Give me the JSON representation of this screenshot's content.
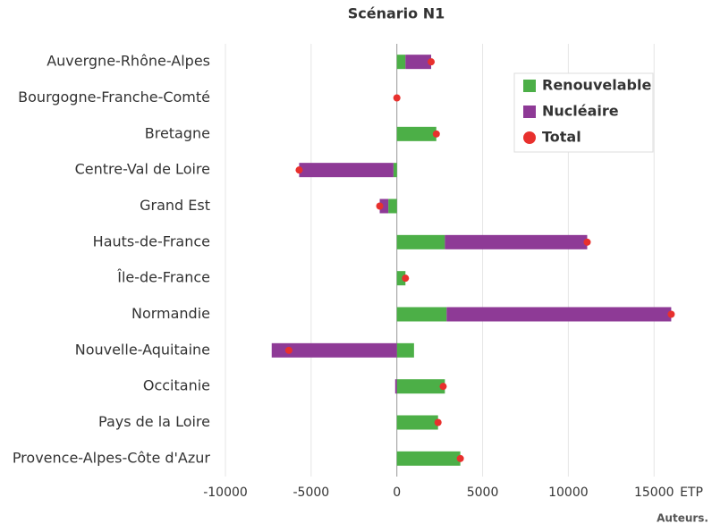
{
  "chart_data": {
    "type": "bar",
    "orientation": "horizontal",
    "stacked": true,
    "title": "Scénario N1",
    "x_label": "ETP",
    "source": "Auteurs.",
    "categories": [
      "Auvergne-Rhône-Alpes",
      "Bourgogne-Franche-Comté",
      "Bretagne",
      "Centre-Val de Loire",
      "Grand Est",
      "Hauts-de-France",
      "Île-de-France",
      "Normandie",
      "Nouvelle-Aquitaine",
      "Occitanie",
      "Pays de la Loire",
      "Provence-Alpes-Côte d'Azur"
    ],
    "series": [
      {
        "name": "Renouvelable",
        "color": "#4caf47",
        "values": [
          500,
          0,
          2300,
          -200,
          -500,
          2800,
          500,
          2900,
          1000,
          2800,
          2400,
          3700
        ]
      },
      {
        "name": "Nucléaire",
        "color": "#8e3a96",
        "values": [
          1500,
          0,
          0,
          -5500,
          -500,
          8300,
          0,
          13100,
          -7300,
          -100,
          0,
          0
        ]
      }
    ],
    "total": {
      "name": "Total",
      "color": "#e8302d",
      "values": [
        2000,
        0,
        2300,
        -5700,
        -1000,
        11100,
        500,
        16000,
        -6300,
        2700,
        2400,
        3700
      ]
    },
    "xlim": [
      -10000,
      16500
    ],
    "xticks": [
      -10000,
      -5000,
      0,
      5000,
      10000,
      15000
    ],
    "grid": true,
    "legend": "upper right"
  }
}
